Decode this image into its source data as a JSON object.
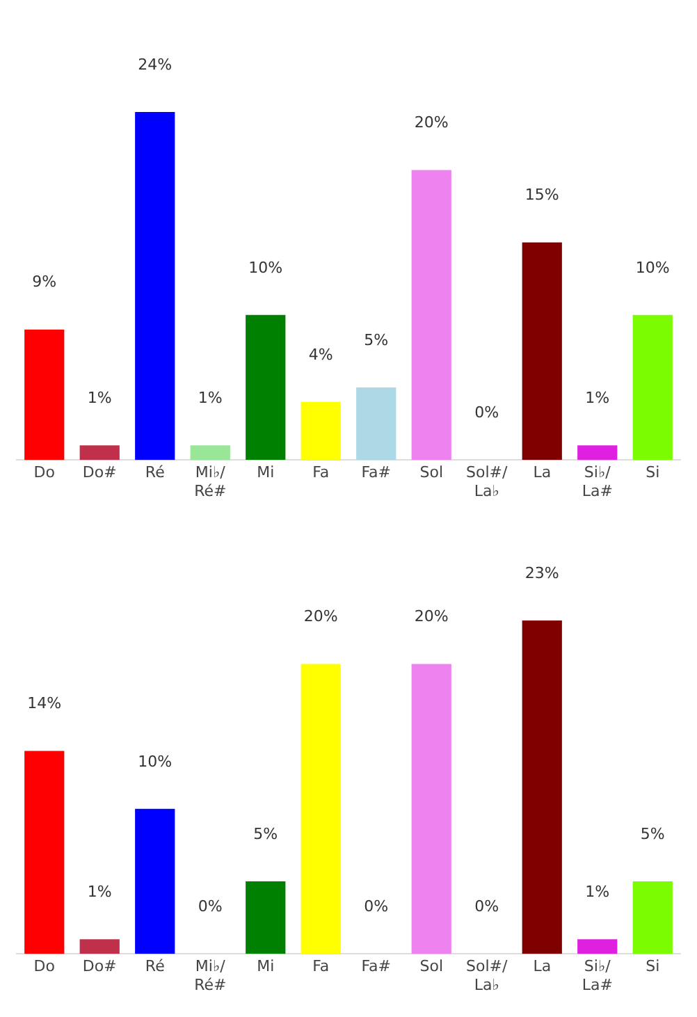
{
  "chart_data": [
    {
      "type": "bar",
      "categories": [
        "Do",
        "Do#",
        "Ré",
        "Mi♭/Ré#",
        "Mi",
        "Fa",
        "Fa#",
        "Sol",
        "Sol#/La♭",
        "La",
        "Si♭/La#",
        "Si"
      ],
      "values": [
        9,
        1,
        24,
        1,
        10,
        4,
        5,
        20,
        0,
        15,
        1,
        10
      ],
      "value_labels": [
        "9%",
        "1%",
        "24%",
        "1%",
        "10%",
        "4%",
        "5%",
        "20%",
        "0%",
        "15%",
        "1%",
        "10%"
      ],
      "colors": [
        "#ff0000",
        "#c0304a",
        "#0000ff",
        "#99e699",
        "#008000",
        "#ffff00",
        "#add8e6",
        "#ee82ee",
        "#ffffff",
        "#800000",
        "#e020e0",
        "#7cfc00"
      ],
      "tick_labels": "x",
      "grid": false,
      "legend": false
    },
    {
      "type": "bar",
      "categories": [
        "Do",
        "Do#",
        "Ré",
        "Mi♭/Ré#",
        "Mi",
        "Fa",
        "Fa#",
        "Sol",
        "Sol#/La♭",
        "La",
        "Si♭/La#",
        "Si"
      ],
      "values": [
        14,
        1,
        10,
        0,
        5,
        20,
        0,
        20,
        0,
        23,
        1,
        5
      ],
      "value_labels": [
        "14%",
        "1%",
        "10%",
        "0%",
        "5%",
        "20%",
        "0%",
        "20%",
        "0%",
        "23%",
        "1%",
        "5%"
      ],
      "colors": [
        "#ff0000",
        "#c0304a",
        "#0000ff",
        "#99e699",
        "#008000",
        "#ffff00",
        "#add8e6",
        "#ee82ee",
        "#ffffff",
        "#800000",
        "#e020e0",
        "#7cfc00"
      ],
      "tick_labels": "x",
      "grid": false,
      "legend": false
    }
  ]
}
